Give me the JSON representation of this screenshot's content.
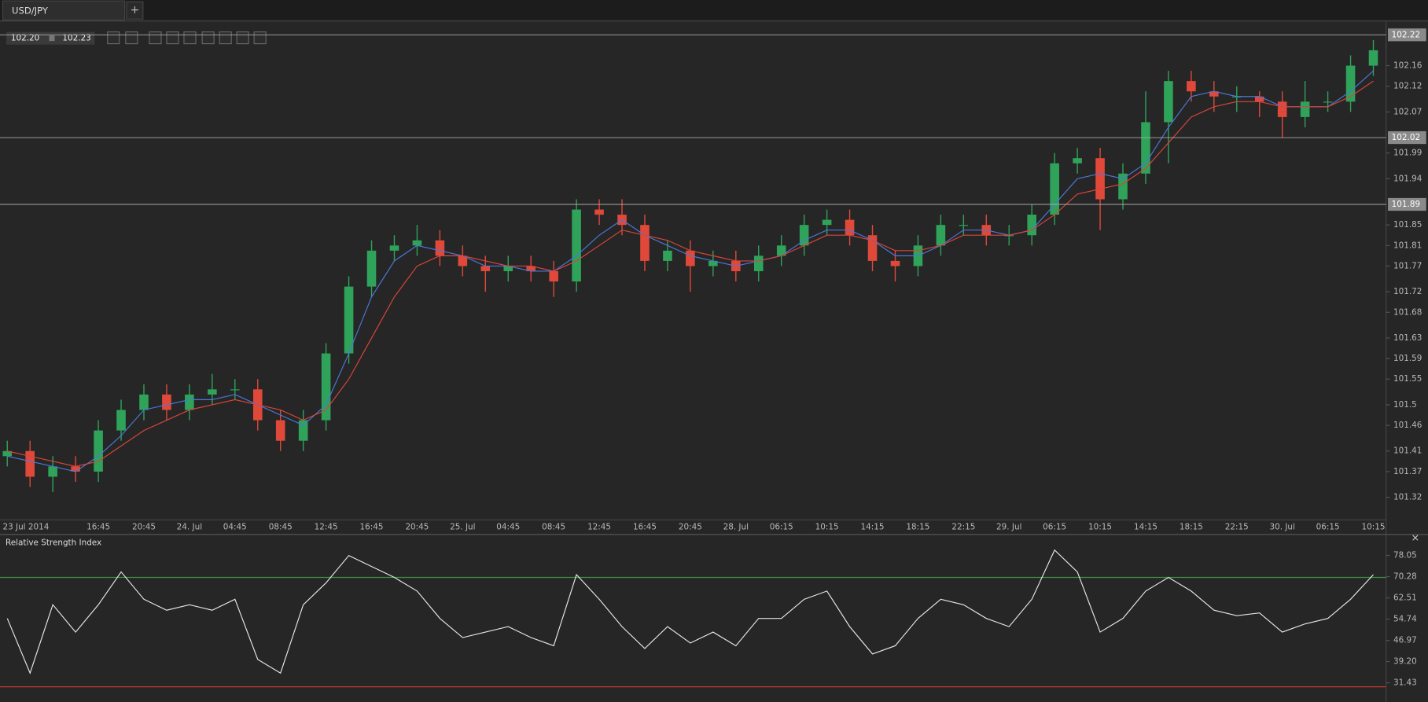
{
  "ui": {
    "tab": "USD/JPY",
    "new_tab": "+",
    "bid": "102.20",
    "ask": "102.23",
    "close": "×"
  },
  "chart_data": [
    {
      "type": "candlestick",
      "categories": [
        "23 Jul 2014",
        null,
        null,
        null,
        "16:45",
        null,
        "20:45",
        null,
        "24. Jul",
        null,
        "04:45",
        null,
        "08:45",
        null,
        "12:45",
        null,
        "16:45",
        null,
        "20:45",
        null,
        "25. Jul",
        null,
        "04:45",
        null,
        "08:45",
        null,
        "12:45",
        null,
        "16:45",
        null,
        "20:45",
        null,
        "28. Jul",
        null,
        "06:15",
        null,
        "10:15",
        null,
        "14:15",
        null,
        "18:15",
        null,
        "22:15",
        null,
        "29. Jul",
        null,
        "06:15",
        null,
        "10:15",
        null,
        "14:15",
        null,
        "18:15",
        null,
        "22:15",
        null,
        "30. Jul",
        null,
        "06:15",
        null,
        "10:15"
      ],
      "open": [
        101.4,
        101.41,
        101.36,
        101.38,
        101.37,
        101.45,
        101.49,
        101.52,
        101.49,
        101.52,
        101.53,
        101.53,
        101.47,
        101.43,
        101.47,
        101.6,
        101.73,
        101.8,
        101.81,
        101.82,
        101.79,
        101.77,
        101.76,
        101.77,
        101.76,
        101.74,
        101.88,
        101.87,
        101.85,
        101.78,
        101.8,
        101.77,
        101.78,
        101.76,
        101.79,
        101.81,
        101.85,
        101.86,
        101.83,
        101.78,
        101.77,
        101.81,
        101.85,
        101.85,
        101.83,
        101.83,
        101.87,
        101.97,
        101.98,
        101.9,
        101.95,
        102.05,
        102.13,
        102.11,
        102.1,
        102.1,
        102.09,
        102.06,
        102.09,
        102.09,
        102.16
      ],
      "high": [
        101.43,
        101.43,
        101.4,
        101.4,
        101.47,
        101.51,
        101.54,
        101.54,
        101.54,
        101.56,
        101.55,
        101.55,
        101.49,
        101.49,
        101.62,
        101.75,
        101.82,
        101.83,
        101.85,
        101.84,
        101.81,
        101.79,
        101.79,
        101.79,
        101.78,
        101.9,
        101.9,
        101.9,
        101.87,
        101.82,
        101.82,
        101.8,
        101.8,
        101.81,
        101.83,
        101.87,
        101.88,
        101.88,
        101.85,
        101.8,
        101.83,
        101.87,
        101.87,
        101.87,
        101.85,
        101.89,
        101.99,
        102.0,
        102.0,
        101.97,
        102.11,
        102.15,
        102.15,
        102.13,
        102.12,
        102.11,
        102.11,
        102.13,
        102.11,
        102.18,
        102.21
      ],
      "low": [
        101.38,
        101.34,
        101.33,
        101.35,
        101.35,
        101.43,
        101.47,
        101.47,
        101.47,
        101.5,
        101.51,
        101.45,
        101.41,
        101.41,
        101.45,
        101.58,
        101.71,
        101.78,
        101.79,
        101.77,
        101.75,
        101.72,
        101.74,
        101.74,
        101.71,
        101.72,
        101.85,
        101.83,
        101.76,
        101.76,
        101.72,
        101.75,
        101.74,
        101.74,
        101.77,
        101.79,
        101.83,
        101.81,
        101.76,
        101.74,
        101.75,
        101.79,
        101.83,
        101.81,
        101.81,
        101.81,
        101.85,
        101.95,
        101.84,
        101.88,
        101.93,
        101.97,
        102.09,
        102.07,
        102.07,
        102.06,
        102.02,
        102.04,
        102.07,
        102.07,
        102.14
      ],
      "close": [
        101.41,
        101.36,
        101.38,
        101.37,
        101.45,
        101.49,
        101.52,
        101.49,
        101.52,
        101.53,
        101.53,
        101.47,
        101.43,
        101.47,
        101.6,
        101.73,
        101.8,
        101.81,
        101.82,
        101.79,
        101.77,
        101.76,
        101.77,
        101.76,
        101.74,
        101.88,
        101.87,
        101.85,
        101.78,
        101.8,
        101.77,
        101.78,
        101.76,
        101.79,
        101.81,
        101.85,
        101.86,
        101.83,
        101.78,
        101.77,
        101.81,
        101.85,
        101.85,
        101.83,
        101.83,
        101.87,
        101.97,
        101.98,
        101.9,
        101.95,
        102.05,
        102.13,
        102.11,
        102.1,
        102.1,
        102.09,
        102.06,
        102.09,
        102.09,
        102.16,
        102.19
      ],
      "up_color": "#2fa35a",
      "down_color": "#e0493a",
      "series": [
        {
          "color": "#4a78d8",
          "values": [
            101.4,
            101.39,
            101.38,
            101.37,
            101.4,
            101.44,
            101.49,
            101.5,
            101.51,
            101.51,
            101.52,
            101.5,
            101.48,
            101.46,
            101.5,
            101.6,
            101.71,
            101.78,
            101.81,
            101.8,
            101.79,
            101.77,
            101.77,
            101.76,
            101.76,
            101.79,
            101.83,
            101.86,
            101.83,
            101.81,
            101.79,
            101.78,
            101.77,
            101.78,
            101.79,
            101.82,
            101.84,
            101.84,
            101.82,
            101.79,
            101.79,
            101.81,
            101.84,
            101.84,
            101.83,
            101.84,
            101.89,
            101.94,
            101.95,
            101.94,
            101.97,
            102.04,
            102.1,
            102.11,
            102.1,
            102.1,
            102.08,
            102.08,
            102.08,
            102.11,
            102.15
          ]
        },
        {
          "color": "#d9453a",
          "values": [
            101.41,
            101.4,
            101.39,
            101.38,
            101.39,
            101.42,
            101.45,
            101.47,
            101.49,
            101.5,
            101.51,
            101.5,
            101.49,
            101.47,
            101.49,
            101.55,
            101.63,
            101.71,
            101.77,
            101.79,
            101.79,
            101.78,
            101.77,
            101.77,
            101.76,
            101.78,
            101.81,
            101.84,
            101.83,
            101.82,
            101.8,
            101.79,
            101.78,
            101.78,
            101.79,
            101.81,
            101.83,
            101.83,
            101.82,
            101.8,
            101.8,
            101.81,
            101.83,
            101.83,
            101.83,
            101.84,
            101.87,
            101.91,
            101.92,
            101.93,
            101.96,
            102.01,
            102.06,
            102.08,
            102.09,
            102.09,
            102.08,
            102.08,
            102.08,
            102.1,
            102.13
          ]
        }
      ],
      "levels": [
        102.22,
        102.02,
        101.89
      ],
      "ylim": [
        101.276,
        102.247
      ],
      "yticks": [
        102.16,
        102.12,
        102.07,
        101.99,
        101.94,
        101.85,
        101.81,
        101.77,
        101.72,
        101.68,
        101.63,
        101.59,
        101.55,
        101.5,
        101.46,
        101.41,
        101.37,
        101.32
      ]
    },
    {
      "type": "line",
      "title": "Relative Strength Index",
      "color": "#e6e6e6",
      "values": [
        55,
        35,
        60,
        50,
        60,
        72,
        62,
        58,
        60,
        58,
        62,
        40,
        35,
        60,
        68,
        78,
        74,
        70,
        65,
        55,
        48,
        50,
        52,
        48,
        45,
        71,
        62,
        52,
        44,
        52,
        46,
        50,
        45,
        55,
        55,
        62,
        65,
        52,
        42,
        45,
        55,
        62,
        60,
        55,
        52,
        62,
        80,
        72,
        50,
        55,
        65,
        70,
        65,
        58,
        56,
        57,
        50,
        53,
        55,
        62,
        71
      ],
      "levels": [
        70,
        30
      ],
      "level_colors": [
        "#3f8f4a",
        "#c0392b"
      ],
      "ylim": [
        24.44,
        85.04
      ],
      "yticks": [
        78.05,
        70.28,
        62.51,
        54.74,
        46.97,
        {
          "value": 39.2,
          "label": "39.20"
        },
        31.43
      ]
    }
  ]
}
